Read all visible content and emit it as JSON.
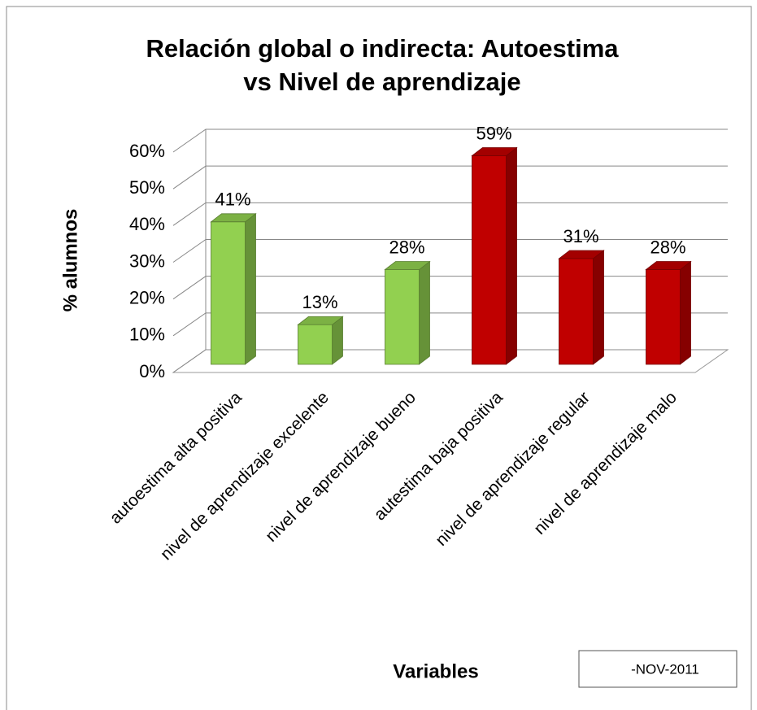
{
  "chart_data": {
    "type": "bar3d",
    "title": "Relación global o indirecta: Autoestima vs Nivel de aprendizaje",
    "xlabel": "Variables",
    "ylabel": "% alumnos",
    "annotation": "-NOV-2011",
    "categories": [
      "autoestima alta positiva",
      "nivel de aprendizaje excelente",
      "nivel de aprendizaje bueno",
      "autestima baja positiva",
      "nivel de aprendizaje regular",
      "nivel de aprendizaje malo"
    ],
    "values": [
      41,
      13,
      28,
      59,
      31,
      28
    ],
    "value_labels": [
      "41%",
      "13%",
      "28%",
      "59%",
      "31%",
      "28%"
    ],
    "colors": [
      "#92d050",
      "#92d050",
      "#92d050",
      "#c00000",
      "#c00000",
      "#c00000"
    ],
    "ylim": [
      0,
      60
    ],
    "yticks": [
      {
        "value": 0,
        "label": "0%"
      },
      {
        "value": 10,
        "label": "10%"
      },
      {
        "value": 20,
        "label": "20%"
      },
      {
        "value": 30,
        "label": "30%"
      },
      {
        "value": 40,
        "label": "40%"
      },
      {
        "value": 50,
        "label": "50%"
      },
      {
        "value": 60,
        "label": "60%"
      }
    ],
    "grid": true
  }
}
